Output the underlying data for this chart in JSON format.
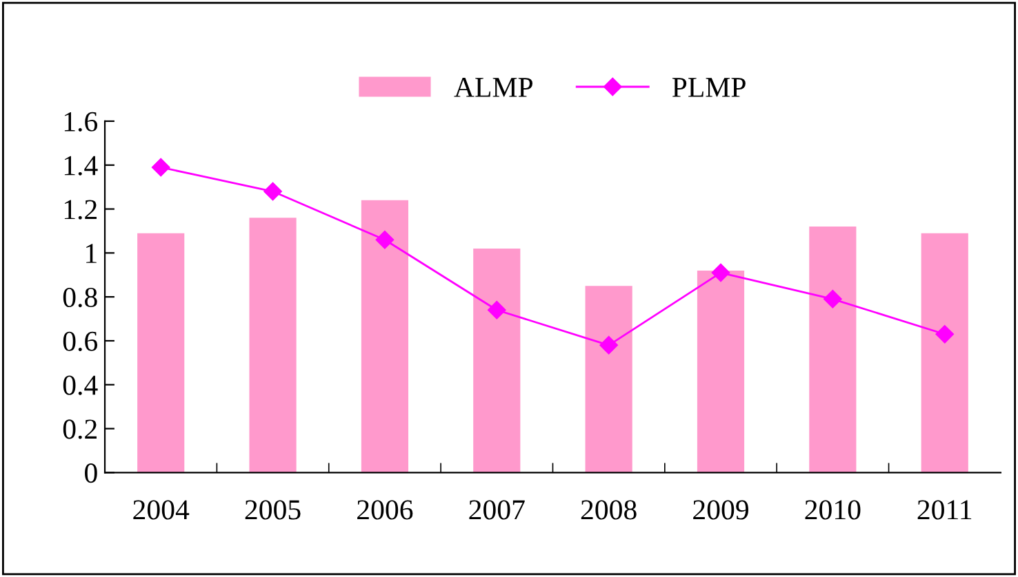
{
  "chart_data": {
    "type": "bar",
    "categories": [
      "2004",
      "2005",
      "2006",
      "2007",
      "2008",
      "2009",
      "2010",
      "2011"
    ],
    "series": [
      {
        "name": "ALMP",
        "color": "#ff99cc",
        "values": [
          1.09,
          1.16,
          1.24,
          1.02,
          0.85,
          0.92,
          1.12,
          1.09
        ]
      },
      {
        "name": "PLMP",
        "type": "line",
        "color": "#ff00ff",
        "marker": "diamond",
        "values": [
          1.39,
          1.28,
          1.06,
          0.74,
          0.58,
          0.91,
          0.79,
          0.63
        ]
      }
    ],
    "ylim": [
      0,
      1.6
    ],
    "yticks": [
      0,
      0.2,
      0.4,
      0.6,
      0.8,
      1,
      1.2,
      1.4,
      1.6
    ],
    "grid": false,
    "legend": "top"
  }
}
